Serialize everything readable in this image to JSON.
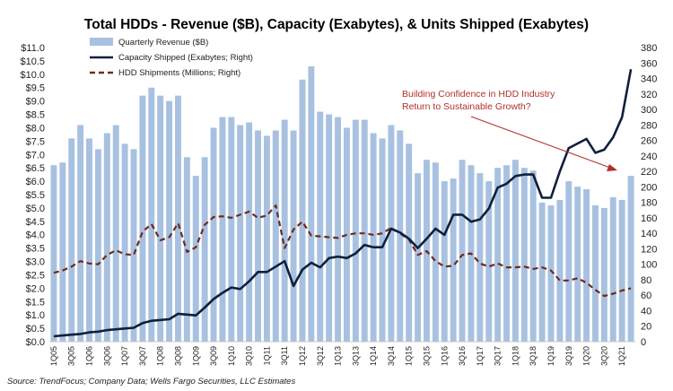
{
  "chart_data": {
    "type": "bar+line",
    "title": "Total HDDs -  Revenue ($B), Capacity (Exabytes), & Units Shipped (Exabytes)",
    "source": "Source:  TrendFocus; Company Data; Wells Fargo Securities, LLC Estimates",
    "annotation": [
      "Building Confidence in HDD Industry",
      "Return to Sustainable Growth?"
    ],
    "left_axis": {
      "range": [
        0,
        11
      ],
      "ticks": [
        "$0.0",
        "$0.5",
        "$1.0",
        "$1.5",
        "$2.0",
        "$2.5",
        "$3.0",
        "$3.5",
        "$4.0",
        "$4.5",
        "$5.0",
        "$5.5",
        "$6.0",
        "$6.5",
        "$7.0",
        "$7.5",
        "$8.0",
        "$8.5",
        "$9.0",
        "$9.5",
        "$10.0",
        "$10.5",
        "$11.0"
      ]
    },
    "right_axis": {
      "range": [
        0,
        380
      ],
      "ticks": [
        "0",
        "20",
        "40",
        "60",
        "80",
        "100",
        "120",
        "140",
        "160",
        "180",
        "200",
        "220",
        "240",
        "260",
        "280",
        "300",
        "320",
        "340",
        "360",
        "380"
      ]
    },
    "x_tick_labels": [
      "1Q05",
      "3Q05",
      "1Q06",
      "3Q06",
      "1Q07",
      "3Q07",
      "1Q08",
      "3Q08",
      "1Q09",
      "3Q09",
      "1Q10",
      "3Q10",
      "1Q11",
      "3Q11",
      "1Q12",
      "3Q12",
      "1Q13",
      "3Q13",
      "1Q14",
      "3Q14",
      "1Q15",
      "3Q15",
      "1Q16",
      "3Q16",
      "1Q17",
      "3Q17",
      "1Q18",
      "3Q18",
      "1Q19",
      "3Q19",
      "1Q20",
      "3Q20",
      "1Q21"
    ],
    "categories": [
      "1Q05",
      "2Q05",
      "3Q05",
      "4Q05",
      "1Q06",
      "2Q06",
      "3Q06",
      "4Q06",
      "1Q07",
      "2Q07",
      "3Q07",
      "4Q07",
      "1Q08",
      "2Q08",
      "3Q08",
      "4Q08",
      "1Q09",
      "2Q09",
      "3Q09",
      "4Q09",
      "1Q10",
      "2Q10",
      "3Q10",
      "4Q10",
      "1Q11",
      "2Q11",
      "3Q11",
      "4Q11",
      "1Q12",
      "2Q12",
      "3Q12",
      "4Q12",
      "1Q13",
      "2Q13",
      "3Q13",
      "4Q13",
      "1Q14",
      "2Q14",
      "3Q14",
      "4Q14",
      "1Q15",
      "2Q15",
      "3Q15",
      "4Q15",
      "1Q16",
      "2Q16",
      "3Q16",
      "4Q16",
      "1Q17",
      "2Q17",
      "3Q17",
      "4Q17",
      "1Q18",
      "2Q18",
      "3Q18",
      "4Q18",
      "1Q19",
      "2Q19",
      "3Q19",
      "4Q19",
      "1Q20",
      "2Q20",
      "3Q20",
      "4Q20",
      "1Q21",
      "2Q21"
    ],
    "series": [
      {
        "name": "Quarterly Revenue ($B)",
        "axis": "left",
        "kind": "bar",
        "color": "#a8c1e0",
        "values": [
          6.6,
          6.7,
          7.6,
          8.1,
          7.6,
          7.2,
          7.8,
          8.1,
          7.4,
          7.2,
          9.2,
          9.5,
          9.2,
          9.0,
          9.2,
          6.9,
          6.2,
          6.9,
          8.0,
          8.4,
          8.4,
          8.1,
          8.2,
          7.9,
          7.7,
          7.9,
          8.3,
          7.9,
          9.8,
          10.3,
          8.6,
          8.5,
          8.4,
          8.0,
          8.3,
          8.3,
          7.8,
          7.6,
          8.1,
          7.9,
          7.4,
          6.3,
          6.8,
          6.7,
          6.0,
          6.1,
          6.8,
          6.6,
          6.3,
          6.0,
          6.5,
          6.6,
          6.8,
          6.5,
          6.4,
          5.2,
          5.1,
          5.3,
          6.0,
          5.8,
          5.7,
          5.1,
          5.0,
          5.4,
          5.3,
          6.2
        ]
      },
      {
        "name": "Capacity Shipped (Exabytes; Right)",
        "axis": "right",
        "kind": "line",
        "color": "#0f1f3d",
        "values": [
          7,
          8,
          9,
          10,
          12,
          13,
          15,
          16,
          17,
          18,
          24,
          27,
          28,
          29,
          36,
          35,
          34,
          44,
          55,
          63,
          70,
          68,
          78,
          90,
          90,
          97,
          104,
          72,
          93,
          102,
          96,
          108,
          110,
          108,
          114,
          125,
          122,
          122,
          146,
          141,
          133,
          121,
          133,
          146,
          138,
          164,
          164,
          155,
          158,
          172,
          199,
          204,
          214,
          216,
          216,
          186,
          186,
          220,
          250,
          256,
          262,
          244,
          248,
          264,
          290,
          352
        ]
      },
      {
        "name": "HDD Shipments (Millions; Right)",
        "axis": "right",
        "kind": "dashed-line",
        "color": "#6e2a1e",
        "values": [
          89,
          92,
          97,
          104,
          101,
          100,
          112,
          118,
          113,
          112,
          142,
          152,
          131,
          135,
          153,
          116,
          122,
          151,
          161,
          162,
          160,
          164,
          168,
          160,
          163,
          176,
          121,
          145,
          155,
          137,
          136,
          135,
          134,
          138,
          140,
          140,
          138,
          140,
          147,
          140,
          132,
          112,
          117,
          104,
          97,
          98,
          112,
          114,
          101,
          97,
          101,
          96,
          96,
          97,
          94,
          96,
          92,
          79,
          79,
          82,
          76,
          67,
          59,
          62,
          66,
          69
        ]
      }
    ]
  }
}
